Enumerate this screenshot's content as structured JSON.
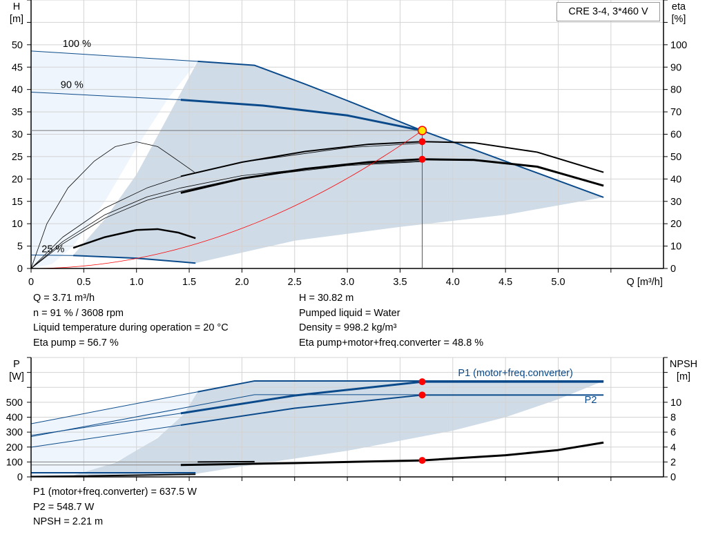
{
  "legend": "CRE 3-4, 3*460 V",
  "info_top": {
    "left": [
      "Q = 3.71 m³/h",
      "n = 91 % / 3608 rpm",
      "Liquid temperature during operation = 20 °C",
      "Eta pump = 56.7 %"
    ],
    "right": [
      "H = 30.82 m",
      "Pumped liquid = Water",
      "Density = 998.2 kg/m³",
      "Eta pump+motor+freq.converter = 48.8 %"
    ]
  },
  "info_bottom": [
    "P1 (motor+freq.converter) = 637.5 W",
    "P2 = 548.7 W",
    "NPSH = 2.21 m"
  ],
  "colors": {
    "blue": "#0a4a8a",
    "red": "#ff0000",
    "light_region": "#eef5fc",
    "dark_region": "#cfdbe7",
    "grid": "#d3d3d3",
    "duty_ring": "#ffe600"
  },
  "chart_data": [
    {
      "type": "line",
      "ylabel_left": "H\n[m]",
      "ylabel_left_lines": [
        "H",
        "[m]"
      ],
      "ylabel_right_lines": [
        "eta",
        "[%]"
      ],
      "xlabel": "Q [m³/h]",
      "xlim": [
        0,
        6
      ],
      "ylim": [
        0,
        60
      ],
      "ylim_right": [
        0,
        120
      ],
      "xticks": [
        "0",
        "0.5",
        "1.0",
        "1.5",
        "2.0",
        "2.5",
        "3.0",
        "3.5",
        "4.0",
        "4.5",
        "5.0"
      ],
      "yticks": [
        "0",
        "5",
        "10",
        "15",
        "20",
        "25",
        "30",
        "35",
        "40",
        "45",
        "50"
      ],
      "yticks_right": [
        "0",
        "10",
        "20",
        "30",
        "40",
        "50",
        "60",
        "70",
        "80",
        "90",
        "100"
      ],
      "grid": true,
      "annotations": [
        {
          "text": "100 %",
          "q": 0.3,
          "h": 49.5
        },
        {
          "text": "90 %",
          "q": 0.28,
          "h": 40.3
        },
        {
          "text": "25 %",
          "q": 0.1,
          "h": 3.6
        }
      ],
      "regions": [
        {
          "name": "light",
          "axis": "h",
          "points": [
            [
              0,
              0
            ],
            [
              0,
              48.6
            ],
            [
              1.58,
              46.3
            ],
            [
              1.3,
              38
            ],
            [
              1.0,
              27
            ],
            [
              0.7,
              15
            ],
            [
              0.4,
              5
            ],
            [
              0.2,
              1
            ],
            [
              0,
              0
            ]
          ]
        },
        {
          "name": "dark",
          "axis": "h",
          "points": [
            [
              0.4,
              3.0
            ],
            [
              0.7,
              11
            ],
            [
              1.0,
              21
            ],
            [
              1.3,
              34
            ],
            [
              1.58,
              46.3
            ],
            [
              2.12,
              45.4
            ],
            [
              3.71,
              30.8
            ],
            [
              5.43,
              15.9
            ],
            [
              4.5,
              12
            ],
            [
              3.5,
              9.3
            ],
            [
              2.5,
              6.2
            ],
            [
              1.56,
              1.2
            ],
            [
              0.4,
              3.0
            ]
          ]
        }
      ],
      "series": [
        {
          "axis": "h",
          "kind": "pump-100",
          "width": 1,
          "color": "blue",
          "points": [
            [
              0,
              48.6
            ],
            [
              1.58,
              46.3
            ]
          ]
        },
        {
          "axis": "h",
          "kind": "pump-100",
          "width": 2,
          "color": "blue",
          "points": [
            [
              1.58,
              46.3
            ],
            [
              2.12,
              45.4
            ],
            [
              2.6,
              41.2
            ],
            [
              3.0,
              37.5
            ],
            [
              3.71,
              30.8
            ],
            [
              5.43,
              15.9
            ]
          ]
        },
        {
          "axis": "h",
          "kind": "pump-90",
          "width": 1,
          "color": "blue",
          "points": [
            [
              0,
              39.4
            ],
            [
              1.42,
              37.7
            ]
          ]
        },
        {
          "axis": "h",
          "kind": "pump-90",
          "width": 3,
          "color": "blue",
          "points": [
            [
              1.42,
              37.7
            ],
            [
              2.2,
              36.4
            ],
            [
              3.0,
              34.2
            ],
            [
              3.71,
              30.8
            ]
          ]
        },
        {
          "axis": "h",
          "kind": "pump-25",
          "width": 1,
          "color": "blue",
          "points": [
            [
              0,
              3.0
            ],
            [
              0.4,
              2.9
            ]
          ]
        },
        {
          "axis": "h",
          "kind": "pump-25",
          "width": 2,
          "color": "blue",
          "points": [
            [
              0.4,
              2.9
            ],
            [
              1.0,
              2.3
            ],
            [
              1.56,
              1.2
            ]
          ]
        },
        {
          "axis": "eta",
          "kind": "eta-thin-arc",
          "width": 0.8,
          "color": "black",
          "points": [
            [
              0,
              0
            ],
            [
              0.15,
              20
            ],
            [
              0.35,
              36
            ],
            [
              0.6,
              48
            ],
            [
              0.8,
              54.5
            ],
            [
              1.0,
              56.6
            ],
            [
              1.2,
              54.5
            ],
            [
              1.4,
              48
            ],
            [
              1.55,
              43
            ]
          ]
        },
        {
          "axis": "eta",
          "kind": "eta-thin",
          "width": 0.8,
          "color": "black",
          "points": [
            [
              0,
              0
            ],
            [
              0.3,
              14
            ],
            [
              0.7,
              27
            ],
            [
              1.1,
              36
            ],
            [
              1.42,
              41
            ],
            [
              2.0,
              47.5
            ],
            [
              3.0,
              54
            ],
            [
              3.71,
              56
            ]
          ]
        },
        {
          "axis": "eta",
          "kind": "eta-thin",
          "width": 0.8,
          "color": "black",
          "points": [
            [
              0,
              0
            ],
            [
              0.3,
              12
            ],
            [
              0.7,
              24
            ],
            [
              1.1,
              32
            ],
            [
              1.42,
              36
            ],
            [
              2.0,
              41.5
            ],
            [
              3.0,
              46.5
            ],
            [
              3.71,
              48
            ]
          ]
        },
        {
          "axis": "eta",
          "kind": "eta-thin",
          "width": 0.8,
          "color": "black",
          "points": [
            [
              0,
              0
            ],
            [
              0.3,
              11
            ],
            [
              0.7,
              22.5
            ],
            [
              1.1,
              30.5
            ],
            [
              1.42,
              34.5
            ],
            [
              2.0,
              40.5
            ],
            [
              3.0,
              46
            ],
            [
              3.71,
              47.8
            ]
          ]
        },
        {
          "axis": "eta",
          "kind": "eta-pump",
          "width": 2,
          "color": "black",
          "points": [
            [
              1.42,
              41.2
            ],
            [
              2.0,
              47.5
            ],
            [
              2.6,
              52.3
            ],
            [
              3.2,
              55.5
            ],
            [
              3.71,
              56.7
            ],
            [
              4.2,
              56.2
            ],
            [
              4.8,
              52
            ],
            [
              5.43,
              43
            ]
          ]
        },
        {
          "axis": "eta",
          "kind": "eta-total",
          "width": 3,
          "color": "black",
          "points": [
            [
              1.42,
              33.8
            ],
            [
              2.0,
              40.2
            ],
            [
              2.6,
              44.5
            ],
            [
              3.2,
              47.5
            ],
            [
              3.71,
              48.8
            ],
            [
              4.2,
              48.5
            ],
            [
              4.8,
              45.5
            ],
            [
              5.43,
              37
            ]
          ]
        },
        {
          "axis": "eta",
          "kind": "eta-25",
          "width": 2.5,
          "color": "black",
          "points": [
            [
              0.4,
              9.2
            ],
            [
              0.7,
              14
            ],
            [
              1.0,
              17.2
            ],
            [
              1.2,
              17.6
            ],
            [
              1.4,
              16
            ],
            [
              1.56,
              13.5
            ]
          ]
        },
        {
          "axis": "h",
          "kind": "system-curve",
          "width": 0.8,
          "color": "red",
          "points": "quadratic:30.82@3.71"
        }
      ],
      "duty_point": {
        "q": 3.71,
        "h": 30.82,
        "eta_pump": 56.7,
        "eta_total": 48.8
      }
    },
    {
      "type": "line",
      "ylabel_left_lines": [
        "P",
        "[W]"
      ],
      "ylabel_right_lines": [
        "NPSH",
        "[m]"
      ],
      "xlim": [
        0,
        6
      ],
      "ylim": [
        0,
        800
      ],
      "ylim_right": [
        0,
        16
      ],
      "yticks": [
        "0",
        "100",
        "200",
        "300",
        "400",
        "500"
      ],
      "yticks_right": [
        "0",
        "2",
        "4",
        "6",
        "8",
        "10"
      ],
      "grid": true,
      "series_labels": [
        {
          "text": "P1 (motor+freq.converter)",
          "q": 4.05,
          "p": 676
        },
        {
          "text": "P2",
          "q": 5.25,
          "p": 495
        }
      ],
      "regions": [
        {
          "name": "light",
          "axis": "p",
          "points": [
            [
              0,
              0
            ],
            [
              0,
              356
            ],
            [
              1.58,
              570
            ],
            [
              1.45,
              420
            ],
            [
              1.25,
              290
            ],
            [
              1.0,
              170
            ],
            [
              0.7,
              70
            ],
            [
              0.4,
              10
            ],
            [
              0,
              0
            ]
          ]
        },
        {
          "name": "dark",
          "axis": "p",
          "points": [
            [
              0.4,
              10
            ],
            [
              0.8,
              95
            ],
            [
              1.2,
              260
            ],
            [
              1.45,
              420
            ],
            [
              1.58,
              570
            ],
            [
              2.12,
              643
            ],
            [
              5.43,
              643
            ],
            [
              5.0,
              520
            ],
            [
              4.5,
              400
            ],
            [
              4.0,
              310
            ],
            [
              3.0,
              175
            ],
            [
              2.0,
              70
            ],
            [
              1.56,
              20
            ],
            [
              0.4,
              10
            ]
          ]
        }
      ],
      "series": [
        {
          "axis": "p",
          "kind": "p1-100",
          "width": 1,
          "color": "blue",
          "points": [
            [
              0,
              356
            ],
            [
              1.58,
              570
            ]
          ]
        },
        {
          "axis": "p",
          "kind": "p1-100",
          "width": 2,
          "color": "blue",
          "points": [
            [
              1.58,
              570
            ],
            [
              2.12,
              643
            ],
            [
              5.43,
              643
            ]
          ]
        },
        {
          "axis": "p",
          "kind": "p1-90",
          "width": 1,
          "color": "blue",
          "points": [
            [
              0,
              278
            ],
            [
              1.42,
              426
            ]
          ]
        },
        {
          "axis": "p",
          "kind": "p1-90",
          "width": 3,
          "color": "blue",
          "points": [
            [
              1.42,
              426
            ],
            [
              2.5,
              545
            ],
            [
              3.71,
              637.5
            ],
            [
              5.43,
              637.5
            ]
          ]
        },
        {
          "axis": "p",
          "kind": "p2-100",
          "width": 1,
          "color": "blue",
          "points": [
            [
              0,
              270
            ],
            [
              2.12,
              551
            ],
            [
              3.71,
              551
            ]
          ]
        },
        {
          "axis": "p",
          "kind": "p2-90",
          "width": 1,
          "color": "blue",
          "points": [
            [
              0,
              199
            ],
            [
              1.42,
              347
            ]
          ]
        },
        {
          "axis": "p",
          "kind": "p2-90",
          "width": 2,
          "color": "blue",
          "points": [
            [
              1.42,
              347
            ],
            [
              2.5,
              460
            ],
            [
              3.71,
              548.7
            ],
            [
              5.43,
              548.7
            ]
          ]
        },
        {
          "axis": "p",
          "kind": "p-25",
          "width": 2,
          "color": "blue",
          "points": [
            [
              0,
              28
            ],
            [
              1.56,
              28
            ]
          ]
        },
        {
          "axis": "npsh",
          "kind": "npsh-thin",
          "width": 1,
          "color": "gray",
          "points": [
            [
              0,
              2.0
            ],
            [
              2.12,
              2.0
            ]
          ]
        },
        {
          "axis": "npsh",
          "kind": "npsh-thin",
          "width": 1,
          "color": "gray",
          "points": [
            [
              0,
              1.6
            ],
            [
              1.42,
              1.6
            ]
          ]
        },
        {
          "axis": "npsh",
          "kind": "npsh-100",
          "width": 2,
          "color": "black",
          "points": [
            [
              1.58,
              2.0
            ],
            [
              2.12,
              2.05
            ]
          ]
        },
        {
          "axis": "npsh",
          "kind": "npsh",
          "width": 3,
          "color": "black",
          "points": [
            [
              1.42,
              1.6
            ],
            [
              2.5,
              1.85
            ],
            [
              3.71,
              2.21
            ],
            [
              4.5,
              2.9
            ],
            [
              5.0,
              3.6
            ],
            [
              5.43,
              4.6
            ]
          ]
        },
        {
          "axis": "npsh",
          "kind": "npsh-25",
          "width": 2,
          "color": "black",
          "points": [
            [
              0,
              0.05
            ],
            [
              0.4,
              0.1
            ],
            [
              1.56,
              0.35
            ]
          ]
        }
      ],
      "duty_point": {
        "q": 3.71,
        "p1": 637.5,
        "p2": 548.7,
        "npsh": 2.21
      }
    }
  ]
}
